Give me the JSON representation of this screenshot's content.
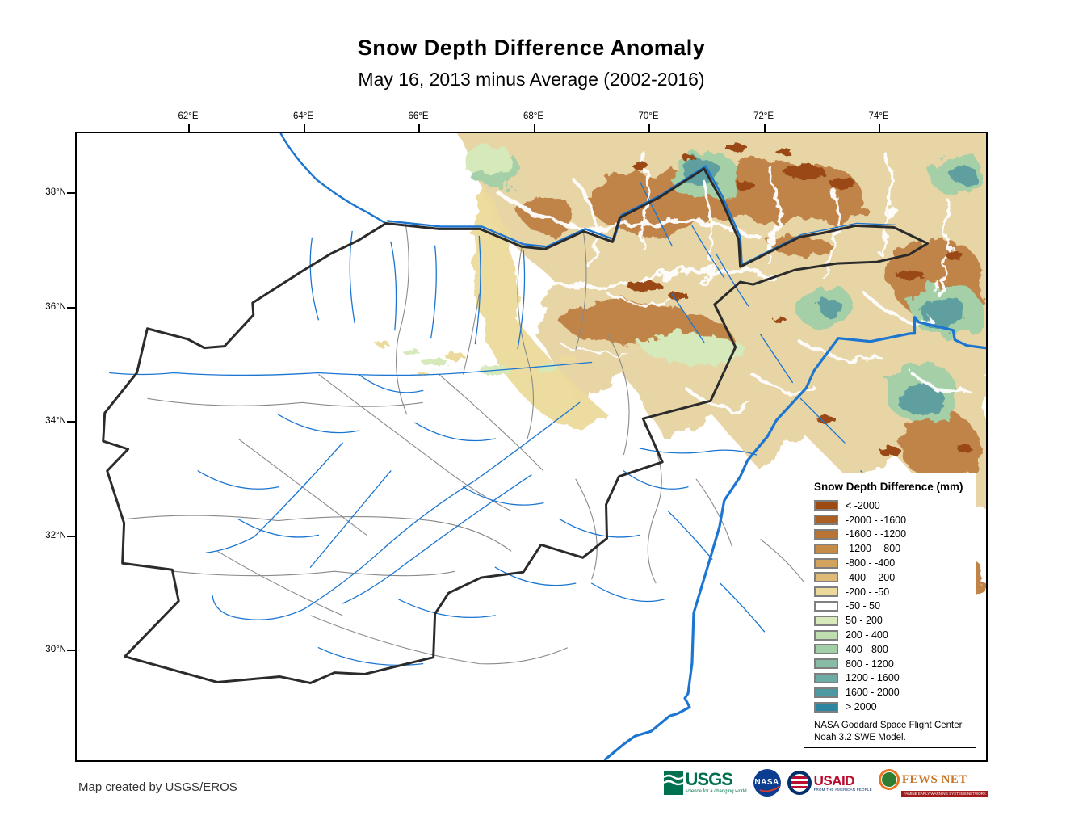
{
  "title": "Snow Depth Difference Anomaly",
  "subtitle": "May 16, 2013 minus Average (2002-2016)",
  "map": {
    "x_axis": {
      "ticks": [
        "62°E",
        "64°E",
        "66°E",
        "68°E",
        "70°E",
        "72°E",
        "74°E"
      ]
    },
    "y_axis": {
      "ticks": [
        "38°N",
        "36°N",
        "34°N",
        "32°N",
        "30°N"
      ]
    }
  },
  "legend": {
    "title": "Snow Depth Difference (mm)",
    "entries": [
      {
        "label": "< -2000",
        "color": "#9C4A12"
      },
      {
        "label": "-2000 - -1600",
        "color": "#AC5F22"
      },
      {
        "label": "-1600 - -1200",
        "color": "#B97334"
      },
      {
        "label": "-1200 - -800",
        "color": "#C68B46"
      },
      {
        "label": "-800 - -400",
        "color": "#D2A35C"
      },
      {
        "label": "-400 - -200",
        "color": "#DEB977"
      },
      {
        "label": "-200 - -50",
        "color": "#EBDA9B"
      },
      {
        "label": "-50 - 50",
        "color": "#FFFFFF"
      },
      {
        "label": "50 - 200",
        "color": "#D8EABC"
      },
      {
        "label": "200 - 400",
        "color": "#BEDEB0"
      },
      {
        "label": "400 - 800",
        "color": "#A3CFA8"
      },
      {
        "label": "800 - 1200",
        "color": "#87BCA4"
      },
      {
        "label": "1200 - 1600",
        "color": "#6DACA4"
      },
      {
        "label": "1600 - 2000",
        "color": "#4E98A1"
      },
      {
        "label": "> 2000",
        "color": "#2E85A0"
      }
    ],
    "note_line1": "NASA Goddard Space Flight Center",
    "note_line2": "Noah 3.2 SWE Model."
  },
  "credit": "Map created by USGS/EROS",
  "logos": {
    "usgs": {
      "name": "USGS",
      "tagline": "science for a changing world"
    },
    "nasa": {
      "name": "NASA"
    },
    "usaid": {
      "name": "USAID",
      "tagline": "FROM THE AMERICAN PEOPLE"
    },
    "fews": {
      "name": "FEWS NET",
      "tagline": "FAMINE EARLY WARNING SYSTEMS NETWORK"
    }
  },
  "colors": {
    "river": "#1B75D1",
    "border": "#2B2B2B",
    "province": "#8A8A8A"
  }
}
